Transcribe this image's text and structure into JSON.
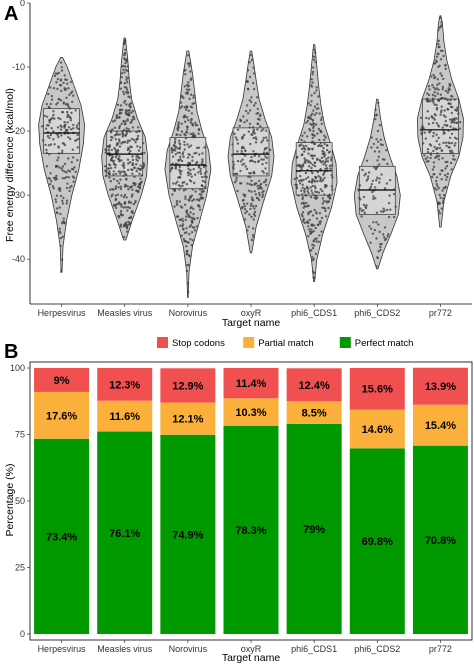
{
  "panels": {
    "a": {
      "label": "A"
    },
    "b": {
      "label": "B"
    }
  },
  "chart_data": [
    {
      "type": "violin",
      "panel": "A",
      "categories": [
        "Herpesvirus",
        "Measles virus",
        "Norovirus",
        "oxyR",
        "phi6_CDS1",
        "phi6_CDS2",
        "pr772"
      ],
      "xlabel": "Target name",
      "ylabel": "Free energy difference (kcal/mol)",
      "ylim": [
        -47,
        0
      ],
      "yticks": [
        0,
        -10,
        -20,
        -30,
        -40
      ],
      "grid": false,
      "colors": {
        "violin": "#c8c8c8",
        "box": "#d8d8d8",
        "point": "#444444"
      },
      "groups": [
        {
          "name": "Herpesvirus",
          "min": -42,
          "q1": -23.5,
          "median": -20.3,
          "q3": -16.5,
          "max": -8.5,
          "n": 220,
          "density": [
            [
              -42,
              0.02
            ],
            [
              -38,
              0.06
            ],
            [
              -34,
              0.22
            ],
            [
              -30,
              0.45
            ],
            [
              -26,
              0.75
            ],
            [
              -22,
              0.95
            ],
            [
              -19,
              1.0
            ],
            [
              -16,
              0.85
            ],
            [
              -13,
              0.55
            ],
            [
              -10,
              0.25
            ],
            [
              -8.5,
              0.04
            ]
          ]
        },
        {
          "name": "Measles virus",
          "min": -37,
          "q1": -27,
          "median": -23.6,
          "q3": -20,
          "max": -5.5,
          "n": 380,
          "density": [
            [
              -37,
              0.05
            ],
            [
              -34,
              0.32
            ],
            [
              -30,
              0.72
            ],
            [
              -27,
              0.95
            ],
            [
              -24,
              1.0
            ],
            [
              -21,
              0.9
            ],
            [
              -18,
              0.55
            ],
            [
              -15,
              0.3
            ],
            [
              -12,
              0.2
            ],
            [
              -9,
              0.14
            ],
            [
              -5.5,
              0.03
            ]
          ]
        },
        {
          "name": "Norovirus",
          "min": -46,
          "q1": -29,
          "median": -25.3,
          "q3": -21,
          "max": -7.5,
          "n": 320,
          "density": [
            [
              -46,
              0.01
            ],
            [
              -42,
              0.05
            ],
            [
              -38,
              0.2
            ],
            [
              -34,
              0.52
            ],
            [
              -30,
              0.82
            ],
            [
              -26,
              1.0
            ],
            [
              -23,
              0.9
            ],
            [
              -20,
              0.62
            ],
            [
              -17,
              0.4
            ],
            [
              -14,
              0.3
            ],
            [
              -11,
              0.2
            ],
            [
              -7.5,
              0.04
            ]
          ]
        },
        {
          "name": "oxyR",
          "min": -39,
          "q1": -27,
          "median": -23.6,
          "q3": -19.5,
          "max": -7.5,
          "n": 210,
          "density": [
            [
              -39,
              0.03
            ],
            [
              -35,
              0.22
            ],
            [
              -31,
              0.55
            ],
            [
              -27,
              0.9
            ],
            [
              -24,
              1.0
            ],
            [
              -21,
              0.9
            ],
            [
              -18,
              0.6
            ],
            [
              -15,
              0.35
            ],
            [
              -12,
              0.22
            ],
            [
              -9.5,
              0.12
            ],
            [
              -7.5,
              0.03
            ]
          ]
        },
        {
          "name": "phi6_CDS1",
          "min": -43.5,
          "q1": -30,
          "median": -26.2,
          "q3": -21.8,
          "max": -6.5,
          "n": 340,
          "density": [
            [
              -43.5,
              0.02
            ],
            [
              -40,
              0.12
            ],
            [
              -36,
              0.38
            ],
            [
              -32,
              0.75
            ],
            [
              -28,
              1.0
            ],
            [
              -25,
              0.95
            ],
            [
              -22,
              0.72
            ],
            [
              -19,
              0.45
            ],
            [
              -16,
              0.3
            ],
            [
              -13,
              0.2
            ],
            [
              -10,
              0.12
            ],
            [
              -6.5,
              0.03
            ]
          ]
        },
        {
          "name": "phi6_CDS2",
          "min": -41.5,
          "q1": -33,
          "median": -29.2,
          "q3": -25.5,
          "max": -15,
          "n": 110,
          "density": [
            [
              -41.5,
              0.03
            ],
            [
              -39,
              0.25
            ],
            [
              -36,
              0.6
            ],
            [
              -33,
              0.92
            ],
            [
              -30,
              1.0
            ],
            [
              -27,
              0.85
            ],
            [
              -24,
              0.55
            ],
            [
              -21,
              0.3
            ],
            [
              -18,
              0.14
            ],
            [
              -15,
              0.03
            ]
          ]
        },
        {
          "name": "pr772",
          "min": -35,
          "q1": -23.5,
          "median": -19.8,
          "q3": -15,
          "max": -2,
          "n": 260,
          "density": [
            [
              -35,
              0.03
            ],
            [
              -31,
              0.15
            ],
            [
              -27,
              0.45
            ],
            [
              -24,
              0.8
            ],
            [
              -21,
              0.98
            ],
            [
              -18,
              1.0
            ],
            [
              -15,
              0.8
            ],
            [
              -12,
              0.5
            ],
            [
              -9,
              0.28
            ],
            [
              -6,
              0.15
            ],
            [
              -3,
              0.08
            ],
            [
              -2,
              0.02
            ]
          ]
        }
      ]
    },
    {
      "type": "stacked-bar",
      "panel": "B",
      "categories": [
        "Herpesvirus",
        "Measles virus",
        "Norovirus",
        "oxyR",
        "phi6_CDS1",
        "phi6_CDS2",
        "pr772"
      ],
      "xlabel": "Target name",
      "ylabel": "Percentage (%)",
      "ylim": [
        0,
        100
      ],
      "yticks": [
        0,
        25,
        50,
        75,
        100
      ],
      "legend_position": "top",
      "series": [
        {
          "name": "Perfect match",
          "color": "#009900",
          "values": [
            73.4,
            76.1,
            74.9,
            78.3,
            79,
            69.8,
            70.8
          ],
          "labels": [
            "73.4%",
            "76.1%",
            "74.9%",
            "78.3%",
            "79%",
            "69.8%",
            "70.8%"
          ]
        },
        {
          "name": "Partial match",
          "color": "#fbb03b",
          "values": [
            17.6,
            11.6,
            12.1,
            10.3,
            8.5,
            14.6,
            15.4
          ],
          "labels": [
            "17.6%",
            "11.6%",
            "12.1%",
            "10.3%",
            "8.5%",
            "14.6%",
            "15.4%"
          ]
        },
        {
          "name": "Stop codons",
          "color": "#f05050",
          "values": [
            9,
            12.3,
            12.9,
            11.4,
            12.4,
            15.6,
            13.9
          ],
          "labels": [
            "9%",
            "12.3%",
            "12.9%",
            "11.4%",
            "12.4%",
            "15.6%",
            "13.9%"
          ]
        }
      ],
      "legend_order": [
        "Stop codons",
        "Partial match",
        "Perfect match"
      ]
    }
  ]
}
